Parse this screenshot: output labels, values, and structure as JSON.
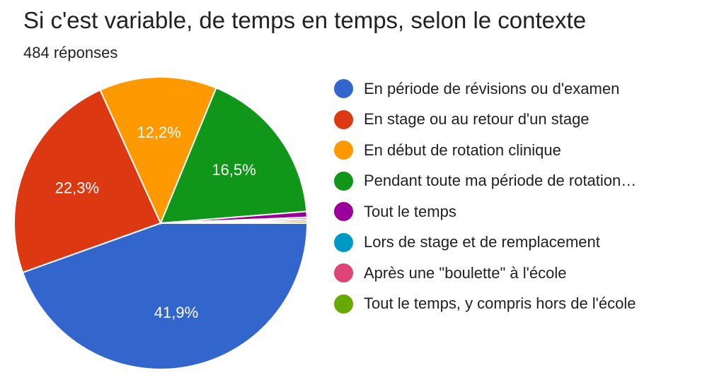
{
  "title": "Si c'est variable, de temps en temps, selon le contexte",
  "subtitle": "484 réponses",
  "chart_data": {
    "type": "pie",
    "title": "Si c'est variable, de temps en temps, selon le contexte",
    "total_responses": 484,
    "legend_position": "right",
    "slices": [
      {
        "label": "En période de révisions ou d'examen",
        "value": 41.9,
        "value_label": "41,9%",
        "color": "#3366cc"
      },
      {
        "label": "En stage ou au retour d'un stage",
        "value": 22.3,
        "value_label": "22,3%",
        "color": "#dc3912"
      },
      {
        "label": "En début de rotation clinique",
        "value": 12.2,
        "value_label": "12,2%",
        "color": "#ff9900"
      },
      {
        "label": "Pendant toute ma période de rotation…",
        "value": 16.5,
        "value_label": "16,5%",
        "color": "#109618"
      },
      {
        "label": "Tout le temps",
        "value": 0.6,
        "value_label": "",
        "color": "#990099"
      },
      {
        "label": "Lors de stage et de remplacement",
        "value": 0.2,
        "value_label": "",
        "color": "#0099c6"
      },
      {
        "label": "Après une \"boulette\" à l'école",
        "value": 0.2,
        "value_label": "",
        "color": "#dd4477"
      },
      {
        "label": "Tout le temps, y compris hors de l'école",
        "value": 0.2,
        "value_label": "",
        "color": "#66aa00"
      }
    ]
  }
}
